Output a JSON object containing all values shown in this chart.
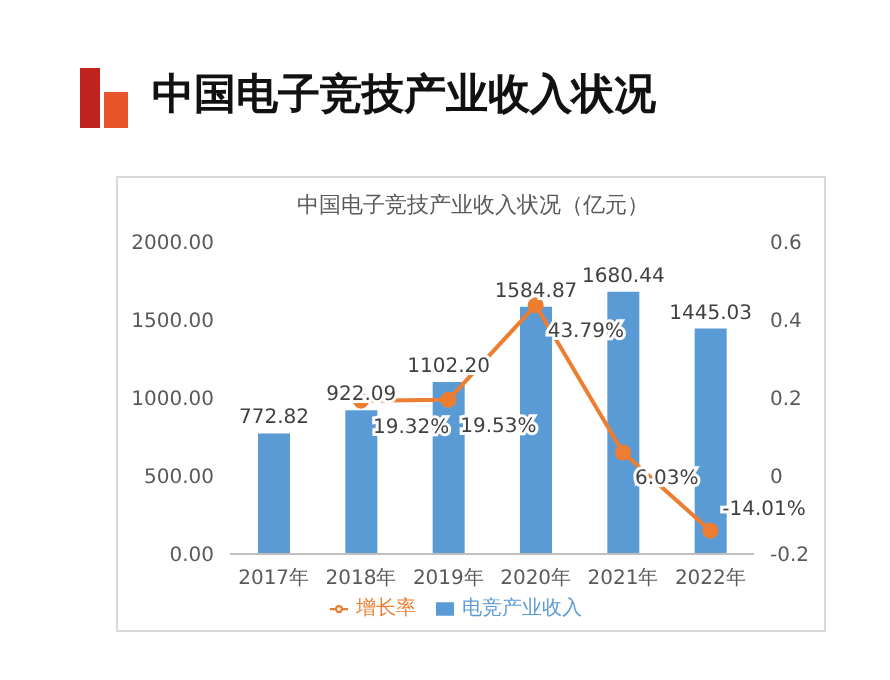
{
  "chart_data": {
    "type": "bar",
    "title": "中国电子竞技产业收入状况",
    "subtitle": "中国电子竞技产业收入状况（亿元）",
    "categories": [
      "2017年",
      "2018年",
      "2019年",
      "2020年",
      "2021年",
      "2022年"
    ],
    "series": [
      {
        "name": "电竞产业收入",
        "color": "#5b9bd5",
        "values": [
          772.82,
          922.09,
          1102.2,
          1584.87,
          1680.44,
          1445.03
        ],
        "value_labels": [
          "772.82",
          "922.09",
          "1102.20",
          "1584.87",
          "1680.44",
          "1445.03"
        ]
      },
      {
        "name": "增长率",
        "type": "line",
        "axis": "y2",
        "color": "#ed7d31",
        "values": [
          null,
          0.1932,
          0.1953,
          0.4379,
          0.0603,
          -0.1401
        ],
        "value_labels": [
          null,
          "19.32%",
          "19.53%",
          "43.79%",
          "6.03%",
          "-14.01%"
        ]
      }
    ],
    "ylim": [
      0,
      2000
    ],
    "yticks": [
      {
        "value": 0,
        "label": "0.00"
      },
      {
        "value": 500,
        "label": "500.00"
      },
      {
        "value": 1000,
        "label": "1000.00"
      },
      {
        "value": 1500,
        "label": "1500.00"
      },
      {
        "value": 2000,
        "label": "2000.00"
      }
    ],
    "y2lim": [
      -0.2,
      0.6
    ],
    "y2ticks": [
      -0.2,
      0,
      0.2,
      0.4,
      0.6
    ],
    "grid": false,
    "legend": "bottom",
    "marker": "circle"
  }
}
